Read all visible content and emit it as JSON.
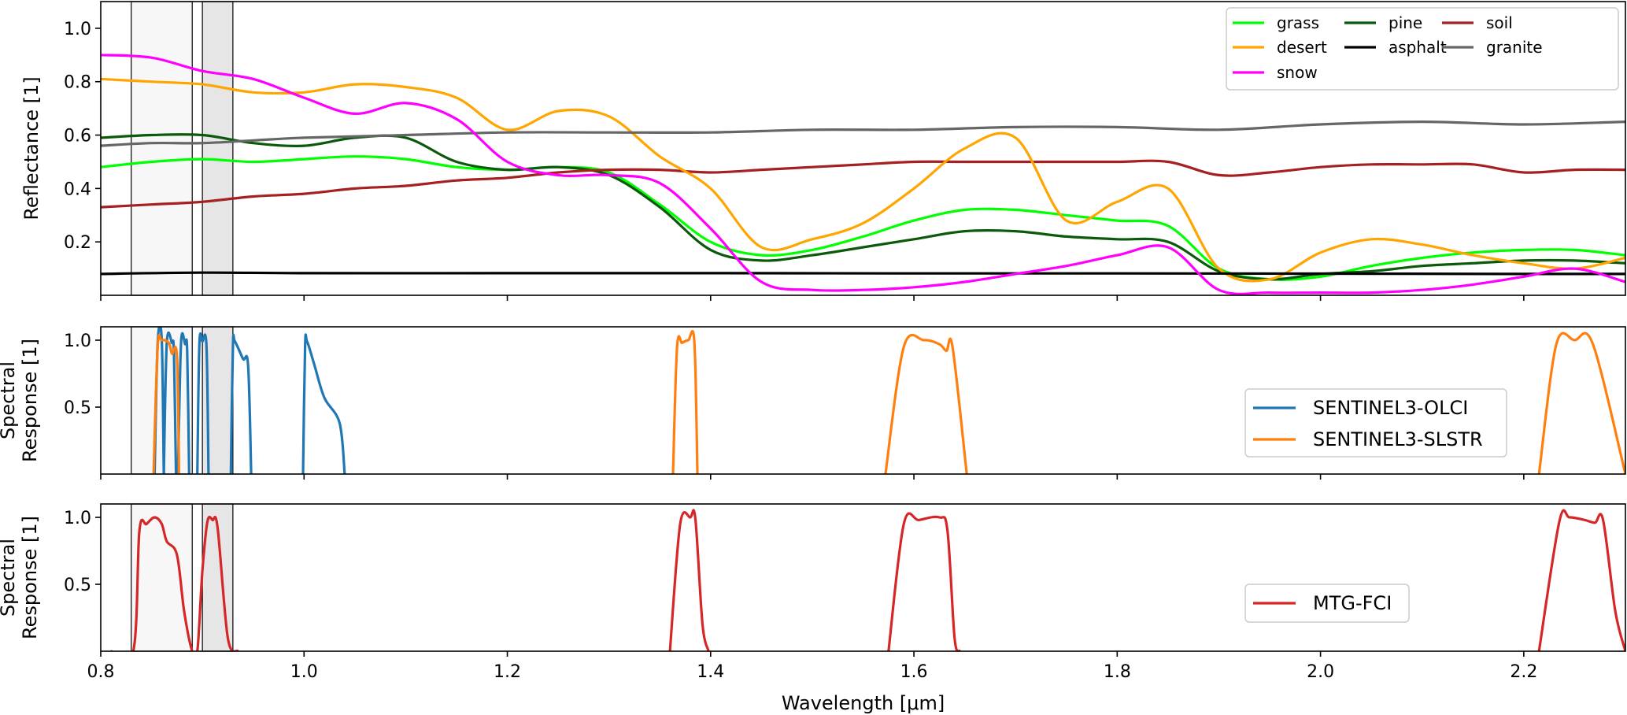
{
  "chart_data": [
    {
      "type": "line",
      "panel": "top",
      "title": "",
      "ylabel": "Reflectance [1]",
      "xlim": [
        0.8,
        2.3
      ],
      "ylim": [
        0.0,
        1.1
      ],
      "yticks": [
        0.2,
        0.4,
        0.6,
        0.8,
        1.0
      ],
      "ytick_labels": [
        "0.2",
        "0.4",
        "0.6",
        "0.8",
        "1.0"
      ],
      "legend_position": "top-right",
      "legend_columns": 3,
      "highlight_bands": [
        [
          0.83,
          0.89
        ],
        [
          0.9,
          0.93
        ]
      ],
      "series": [
        {
          "name": "grass",
          "color": "#00ff00",
          "x": [
            0.8,
            0.85,
            0.9,
            0.95,
            1.0,
            1.05,
            1.1,
            1.15,
            1.2,
            1.25,
            1.3,
            1.35,
            1.4,
            1.45,
            1.5,
            1.55,
            1.6,
            1.65,
            1.7,
            1.75,
            1.8,
            1.85,
            1.9,
            1.95,
            2.0,
            2.05,
            2.1,
            2.15,
            2.2,
            2.25,
            2.3
          ],
          "y": [
            0.48,
            0.5,
            0.51,
            0.5,
            0.51,
            0.52,
            0.51,
            0.48,
            0.47,
            0.48,
            0.46,
            0.34,
            0.2,
            0.15,
            0.17,
            0.22,
            0.28,
            0.32,
            0.32,
            0.3,
            0.28,
            0.26,
            0.1,
            0.06,
            0.07,
            0.11,
            0.14,
            0.16,
            0.17,
            0.17,
            0.15
          ]
        },
        {
          "name": "pine",
          "color": "#0b5a0b",
          "x": [
            0.8,
            0.85,
            0.9,
            0.95,
            1.0,
            1.05,
            1.1,
            1.15,
            1.2,
            1.25,
            1.3,
            1.35,
            1.4,
            1.45,
            1.5,
            1.55,
            1.6,
            1.65,
            1.7,
            1.75,
            1.8,
            1.85,
            1.9,
            1.95,
            2.0,
            2.05,
            2.1,
            2.15,
            2.2,
            2.25,
            2.3
          ],
          "y": [
            0.59,
            0.6,
            0.6,
            0.57,
            0.56,
            0.59,
            0.59,
            0.5,
            0.47,
            0.48,
            0.45,
            0.33,
            0.17,
            0.13,
            0.15,
            0.18,
            0.21,
            0.24,
            0.24,
            0.22,
            0.21,
            0.2,
            0.09,
            0.06,
            0.08,
            0.09,
            0.11,
            0.12,
            0.13,
            0.13,
            0.12
          ]
        },
        {
          "name": "soil",
          "color": "#a52020",
          "x": [
            0.8,
            0.85,
            0.9,
            0.95,
            1.0,
            1.05,
            1.1,
            1.15,
            1.2,
            1.25,
            1.3,
            1.35,
            1.4,
            1.45,
            1.5,
            1.55,
            1.6,
            1.65,
            1.7,
            1.75,
            1.8,
            1.85,
            1.9,
            1.95,
            2.0,
            2.05,
            2.1,
            2.15,
            2.2,
            2.25,
            2.3
          ],
          "y": [
            0.33,
            0.34,
            0.35,
            0.37,
            0.38,
            0.4,
            0.41,
            0.43,
            0.44,
            0.46,
            0.47,
            0.47,
            0.46,
            0.47,
            0.48,
            0.49,
            0.5,
            0.5,
            0.5,
            0.5,
            0.5,
            0.5,
            0.45,
            0.46,
            0.48,
            0.49,
            0.49,
            0.49,
            0.46,
            0.47,
            0.47
          ]
        },
        {
          "name": "desert",
          "color": "#ffa500",
          "x": [
            0.8,
            0.85,
            0.9,
            0.95,
            1.0,
            1.05,
            1.1,
            1.15,
            1.2,
            1.25,
            1.3,
            1.35,
            1.4,
            1.45,
            1.5,
            1.55,
            1.6,
            1.65,
            1.7,
            1.75,
            1.8,
            1.85,
            1.9,
            1.95,
            2.0,
            2.05,
            2.1,
            2.15,
            2.2,
            2.25,
            2.3
          ],
          "y": [
            0.81,
            0.8,
            0.79,
            0.76,
            0.76,
            0.79,
            0.78,
            0.74,
            0.62,
            0.69,
            0.67,
            0.52,
            0.4,
            0.18,
            0.21,
            0.27,
            0.4,
            0.55,
            0.59,
            0.28,
            0.35,
            0.4,
            0.1,
            0.06,
            0.16,
            0.21,
            0.19,
            0.15,
            0.12,
            0.1,
            0.14
          ]
        },
        {
          "name": "asphalt",
          "color": "#000000",
          "x": [
            0.8,
            0.9,
            1.0,
            1.2,
            1.4,
            1.6,
            1.8,
            2.0,
            2.2,
            2.3
          ],
          "y": [
            0.08,
            0.085,
            0.083,
            0.083,
            0.083,
            0.082,
            0.082,
            0.081,
            0.08,
            0.08
          ]
        },
        {
          "name": "granite",
          "color": "#666666",
          "x": [
            0.8,
            0.85,
            0.9,
            0.95,
            1.0,
            1.1,
            1.2,
            1.3,
            1.4,
            1.5,
            1.6,
            1.7,
            1.8,
            1.9,
            2.0,
            2.1,
            2.2,
            2.3
          ],
          "y": [
            0.56,
            0.57,
            0.57,
            0.58,
            0.59,
            0.6,
            0.61,
            0.61,
            0.61,
            0.62,
            0.62,
            0.63,
            0.63,
            0.62,
            0.64,
            0.65,
            0.64,
            0.65
          ]
        },
        {
          "name": "snow",
          "color": "#ff00ff",
          "x": [
            0.8,
            0.85,
            0.9,
            0.95,
            1.0,
            1.05,
            1.1,
            1.15,
            1.2,
            1.25,
            1.3,
            1.35,
            1.4,
            1.45,
            1.5,
            1.55,
            1.6,
            1.65,
            1.7,
            1.75,
            1.8,
            1.85,
            1.9,
            1.95,
            2.0,
            2.05,
            2.1,
            2.15,
            2.2,
            2.25,
            2.3
          ],
          "y": [
            0.9,
            0.89,
            0.84,
            0.81,
            0.74,
            0.68,
            0.72,
            0.66,
            0.5,
            0.45,
            0.45,
            0.42,
            0.25,
            0.05,
            0.02,
            0.02,
            0.03,
            0.05,
            0.08,
            0.11,
            0.15,
            0.18,
            0.02,
            0.01,
            0.01,
            0.01,
            0.02,
            0.04,
            0.07,
            0.1,
            0.05
          ]
        }
      ]
    },
    {
      "type": "line",
      "panel": "middle",
      "title": "",
      "ylabel": "Spectral\nResponse [1]",
      "xlim": [
        0.8,
        2.3
      ],
      "ylim": [
        0.0,
        1.1
      ],
      "yticks": [
        0.5,
        1.0
      ],
      "ytick_labels": [
        "0.5",
        "1.0"
      ],
      "legend_position": "center-right",
      "highlight_bands": [
        [
          0.83,
          0.89
        ],
        [
          0.9,
          0.93
        ]
      ],
      "series": [
        {
          "name": "SENTINEL3-OLCI",
          "color": "#1f77b4",
          "segments": [
            [
              [
                0.853,
                0
              ],
              [
                0.856,
                0.98
              ],
              [
                0.86,
                1.0
              ],
              [
                0.862,
                0.0
              ]
            ],
            [
              [
                0.862,
                0
              ],
              [
                0.865,
                0.98
              ],
              [
                0.87,
                0.98
              ],
              [
                0.872,
                0.9
              ],
              [
                0.874,
                0.0
              ]
            ],
            [
              [
                0.876,
                0
              ],
              [
                0.879,
                0.98
              ],
              [
                0.883,
                0.97
              ],
              [
                0.885,
                0.92
              ],
              [
                0.887,
                0.0
              ]
            ],
            [
              [
                0.895,
                0
              ],
              [
                0.897,
                0.97
              ],
              [
                0.9,
                0.99
              ],
              [
                0.904,
                0.96
              ],
              [
                0.906,
                0.0
              ]
            ],
            [
              [
                0.928,
                0
              ],
              [
                0.93,
                0.95
              ],
              [
                0.932,
                0.99
              ],
              [
                0.94,
                0.86
              ],
              [
                0.945,
                0.81
              ],
              [
                0.948,
                0.0
              ]
            ],
            [
              [
                0.999,
                0
              ],
              [
                1.001,
                0.95
              ],
              [
                1.003,
                0.99
              ],
              [
                1.01,
                0.82
              ],
              [
                1.02,
                0.57
              ],
              [
                1.035,
                0.38
              ],
              [
                1.04,
                0.0
              ]
            ]
          ]
        },
        {
          "name": "SENTINEL3-SLSTR",
          "color": "#ff7f0e",
          "segments": [
            [
              [
                0.852,
                0
              ],
              [
                0.856,
                0.95
              ],
              [
                0.86,
                1.0
              ],
              [
                0.867,
                0.98
              ],
              [
                0.87,
                0.9
              ],
              [
                0.875,
                0.88
              ],
              [
                0.877,
                0.0
              ]
            ],
            [
              [
                1.363,
                0
              ],
              [
                1.367,
                0.95
              ],
              [
                1.372,
                0.98
              ],
              [
                1.378,
                1.0
              ],
              [
                1.384,
                0.99
              ],
              [
                1.387,
                0.0
              ]
            ],
            [
              [
                1.572,
                0
              ],
              [
                1.59,
                0.95
              ],
              [
                1.61,
                1.0
              ],
              [
                1.625,
                0.97
              ],
              [
                1.632,
                0.92
              ],
              [
                1.638,
                0.95
              ],
              [
                1.652,
                0.0
              ]
            ],
            [
              [
                2.215,
                0
              ],
              [
                2.232,
                0.97
              ],
              [
                2.25,
                1.0
              ],
              [
                2.268,
                0.97
              ],
              [
                2.3,
                0.0
              ]
            ]
          ]
        }
      ]
    },
    {
      "type": "line",
      "panel": "bottom",
      "title": "",
      "xlabel": "Wavelength [μm]",
      "ylabel": "Spectral\nResponse [1]",
      "xlim": [
        0.8,
        2.3
      ],
      "ylim": [
        0.0,
        1.1
      ],
      "xticks": [
        0.8,
        1.0,
        1.2,
        1.4,
        1.6,
        1.8,
        2.0,
        2.2
      ],
      "xtick_labels": [
        "0.8",
        "1.0",
        "1.2",
        "1.4",
        "1.6",
        "1.8",
        "2.0",
        "2.2"
      ],
      "yticks": [
        0.5,
        1.0
      ],
      "ytick_labels": [
        "0.5",
        "1.0"
      ],
      "legend_position": "center-right",
      "highlight_bands": [
        [
          0.83,
          0.89
        ],
        [
          0.9,
          0.93
        ]
      ],
      "series": [
        {
          "name": "MTG-FCI",
          "color": "#d62728",
          "segments": [
            [
              [
                0.81,
                0
              ],
              [
                0.832,
                0.0
              ],
              [
                0.838,
                0.9
              ],
              [
                0.845,
                0.95
              ],
              [
                0.853,
                1.0
              ],
              [
                0.86,
                0.95
              ],
              [
                0.865,
                0.82
              ],
              [
                0.875,
                0.72
              ],
              [
                0.882,
                0.3
              ],
              [
                0.89,
                0.0
              ],
              [
                0.895,
                0.0
              ],
              [
                0.9,
                0.6
              ],
              [
                0.905,
                0.97
              ],
              [
                0.91,
                0.98
              ],
              [
                0.915,
                0.92
              ],
              [
                0.925,
                0.1
              ],
              [
                0.935,
                0.0
              ]
            ],
            [
              [
                1.36,
                0
              ],
              [
                1.37,
                0.95
              ],
              [
                1.38,
                1.0
              ],
              [
                1.385,
                0.99
              ],
              [
                1.392,
                0.2
              ],
              [
                1.398,
                0.0
              ]
            ],
            [
              [
                1.575,
                0
              ],
              [
                1.59,
                0.95
              ],
              [
                1.605,
                0.98
              ],
              [
                1.625,
                1.0
              ],
              [
                1.633,
                0.9
              ],
              [
                1.64,
                0.1
              ],
              [
                1.645,
                0.0
              ]
            ],
            [
              [
                2.215,
                0
              ],
              [
                2.235,
                0.97
              ],
              [
                2.245,
                1.0
              ],
              [
                2.26,
                0.98
              ],
              [
                2.27,
                0.96
              ],
              [
                2.278,
                0.98
              ],
              [
                2.29,
                0.3
              ],
              [
                2.3,
                0.0
              ]
            ]
          ]
        }
      ]
    }
  ]
}
